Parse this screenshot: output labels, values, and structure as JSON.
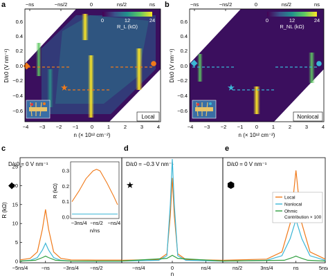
{
  "panels_top": [
    {
      "label": "a",
      "colorbar_label": "R_L (kΩ)",
      "colorbar_ticks": [
        "0",
        "12",
        "24"
      ],
      "mode": "Local",
      "marker_color": "#f07a1a",
      "dash_color": "#f07a1a"
    },
    {
      "label": "b",
      "colorbar_label": "R_NL (kΩ)",
      "colorbar_ticks": [
        "0",
        "12",
        "24"
      ],
      "mode": "Nonlocal",
      "marker_color": "#3bb6d6",
      "dash_color": "#3bb6d6"
    }
  ],
  "panels_bottom": [
    {
      "label": "c",
      "condition": "D/ε0 = 0 V nm⁻¹",
      "marker": "◆"
    },
    {
      "label": "d",
      "condition": "D/ε0 = −0.3 V nm⁻¹",
      "marker": "★"
    },
    {
      "label": "e",
      "condition": "D/ε0 = 0 V nm⁻¹",
      "marker": "⬢"
    }
  ],
  "axes": {
    "top_x_labels": [
      "−ns",
      "−ns/2",
      "0",
      "ns/2",
      "ns"
    ],
    "bottom_x_labels": [
      "−4",
      "−3",
      "−2",
      "−1",
      "0",
      "1",
      "2",
      "3",
      "4"
    ],
    "x_title": "n (× 10¹² cm⁻²)",
    "y_title": "D/ε0 (V nm⁻¹)",
    "y_labels": [
      "0.6",
      "0.4",
      "0.2",
      "0.0",
      "−0.2",
      "−0.4",
      "−0.6"
    ],
    "R_title": "R (kΩ)",
    "R_ticks": [
      "0",
      "5",
      "10",
      "15",
      "20",
      "25"
    ],
    "n_title": "n",
    "n_ticks_c": [
      "−5ns/4",
      "−ns",
      "−3ns/4",
      "−ns/2"
    ],
    "n_ticks_d": [
      "−ns/4",
      "0",
      "ns/4"
    ],
    "n_ticks_e": [
      "ns/2",
      "3ns/4",
      "ns",
      "5ns/4"
    ],
    "inset_title": "R (kΩ)",
    "inset_ticks": [
      "0.0",
      "0.1",
      "0.2",
      "0.3"
    ],
    "inset_xticks": [
      "−3ns/4",
      "−ns/2",
      "−ns/4"
    ],
    "inset_xtitle": "n/ns"
  },
  "legend": [
    "Local",
    "Nonlocal",
    "Ohmic",
    "Contribution × 100"
  ],
  "colors": {
    "local": "#f07a1a",
    "nonlocal": "#3bb6d6",
    "ohmic": "#2e9e3e",
    "map_bg": "#3b0f5e",
    "map_mid": "#2c6e8e",
    "map_hi": "#f3e635"
  },
  "chart_data": [
    {
      "type": "heatmap",
      "title": "",
      "xlabel": "n (× 10¹² cm⁻²)",
      "ylabel": "D/ε0 (V nm⁻¹)",
      "xlim": [
        -4,
        4
      ],
      "ylim": [
        -0.7,
        0.7
      ],
      "colorbar": {
        "label": "R_L (kΩ)",
        "range": [
          0,
          24
        ]
      },
      "features": [
        {
          "n": -3.3,
          "D_range": [
            0.15,
            0.55
          ]
        },
        {
          "n": -2.5,
          "D_range": [
            -0.55,
            -0.1
          ]
        },
        {
          "n": 0,
          "D_range": [
            -0.55,
            0.6
          ]
        },
        {
          "n": 3.3,
          "D_range": [
            -0.2,
            0.2
          ]
        }
      ]
    },
    {
      "type": "heatmap",
      "title": "",
      "xlabel": "n (× 10¹² cm⁻²)",
      "ylabel": "D/ε0 (V nm⁻¹)",
      "xlim": [
        -4,
        4
      ],
      "ylim": [
        -0.7,
        0.7
      ],
      "colorbar": {
        "label": "R_NL (kΩ)",
        "range": [
          0,
          24
        ]
      },
      "features": [
        {
          "n": -3.6,
          "D_range": [
            -0.1,
            0.2
          ]
        },
        {
          "n": 0,
          "D_range": [
            -0.45,
            -0.25
          ]
        },
        {
          "n": 3.6,
          "D_range": [
            -0.15,
            0.2
          ]
        }
      ]
    },
    {
      "type": "line",
      "xlabel": "n",
      "ylabel": "R (kΩ)",
      "ylim": [
        0,
        27
      ],
      "x_units": "n/ns",
      "xlim": [
        -1.25,
        -0.25
      ],
      "series": [
        {
          "name": "Local",
          "x": [
            -1.25,
            -1.15,
            -1.08,
            -1.03,
            -1.0,
            -0.97,
            -0.92,
            -0.85,
            -0.75,
            -0.5,
            -0.25
          ],
          "values": [
            0.4,
            0.8,
            2.5,
            8.5,
            13.7,
            8.5,
            2.5,
            0.8,
            0.4,
            0.35,
            0.35
          ]
        },
        {
          "name": "Nonlocal",
          "x": [
            -1.25,
            -1.15,
            -1.08,
            -1.03,
            -1.0,
            -0.97,
            -0.92,
            -0.85,
            -0.75,
            -0.5,
            -0.25
          ],
          "values": [
            0.1,
            0.3,
            1.0,
            3.0,
            4.8,
            3.0,
            1.0,
            0.3,
            0.1,
            0.05,
            0.05
          ]
        },
        {
          "name": "Ohmic Contribution × 100",
          "x": [
            -1.25,
            -1.1,
            -1.03,
            -1.0,
            -0.97,
            -0.9,
            -0.75,
            -0.5,
            -0.25
          ],
          "values": [
            0.1,
            0.3,
            1.0,
            1.4,
            1.0,
            0.3,
            0.1,
            0.1,
            0.1
          ]
        }
      ],
      "inset": {
        "ylabel": "R (kΩ)",
        "xlabel": "n/ns",
        "ylim": [
          0,
          0.35
        ],
        "xlim": [
          -0.85,
          -0.2
        ],
        "series": [
          {
            "name": "Local",
            "x": [
              -0.85,
              -0.75,
              -0.65,
              -0.55,
              -0.5,
              -0.45,
              -0.35,
              -0.25,
              -0.2
            ],
            "values": [
              0.1,
              0.17,
              0.25,
              0.3,
              0.31,
              0.3,
              0.22,
              0.13,
              0.08
            ]
          },
          {
            "name": "Nonlocal",
            "x": [
              -0.85,
              -0.2
            ],
            "values": [
              0.02,
              0.02
            ]
          }
        ]
      }
    },
    {
      "type": "line",
      "xlabel": "n",
      "ylabel": "",
      "ylim": [
        0,
        27
      ],
      "x_units": "n/ns",
      "xlim": [
        -0.375,
        0.375
      ],
      "series": [
        {
          "name": "Local",
          "x": [
            -0.375,
            -0.1,
            -0.04,
            -0.015,
            0,
            0.015,
            0.04,
            0.1,
            0.375
          ],
          "values": [
            0.3,
            0.5,
            2,
            12,
            22,
            12,
            2,
            0.5,
            0.3
          ]
        },
        {
          "name": "Nonlocal",
          "x": [
            -0.375,
            -0.1,
            -0.04,
            -0.015,
            0,
            0.015,
            0.04,
            0.1,
            0.375
          ],
          "values": [
            0.1,
            0.3,
            1.5,
            15,
            27,
            15,
            1.5,
            0.3,
            0.1
          ]
        },
        {
          "name": "Ohmic Contribution × 100",
          "x": [
            -0.375,
            -0.04,
            0,
            0.04,
            0.375
          ],
          "values": [
            0.1,
            0.8,
            1.6,
            0.8,
            0.1
          ]
        }
      ]
    },
    {
      "type": "line",
      "xlabel": "n",
      "ylabel": "",
      "ylim": [
        0,
        27
      ],
      "x_units": "n/ns",
      "xlim": [
        0.375,
        1.25
      ],
      "series": [
        {
          "name": "Local",
          "x": [
            0.375,
            0.75,
            0.88,
            0.95,
            0.98,
            1.0,
            1.02,
            1.05,
            1.12,
            1.25
          ],
          "values": [
            0.3,
            0.6,
            2.5,
            10,
            18,
            24,
            18,
            10,
            2.5,
            0.6
          ]
        },
        {
          "name": "Nonlocal",
          "x": [
            0.375,
            0.75,
            0.88,
            0.95,
            0.98,
            1.0,
            1.02,
            1.05,
            1.12,
            1.25
          ],
          "values": [
            0.1,
            0.3,
            1.5,
            6,
            9,
            11,
            9,
            6,
            1.5,
            0.3
          ]
        },
        {
          "name": "Ohmic Contribution × 100",
          "x": [
            0.375,
            0.9,
            0.97,
            1.0,
            1.03,
            1.1,
            1.25
          ],
          "values": [
            0.1,
            0.3,
            1.0,
            1.4,
            1.0,
            0.3,
            0.1
          ]
        }
      ]
    }
  ]
}
